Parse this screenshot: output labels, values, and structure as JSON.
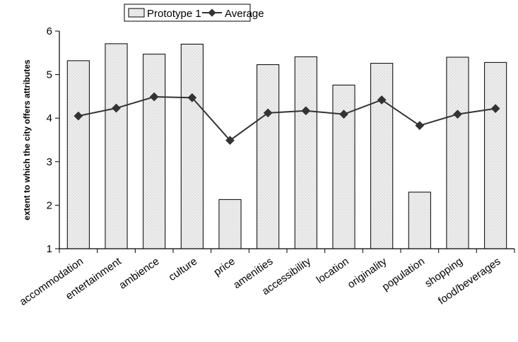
{
  "chart_data": {
    "type": "bar",
    "categories": [
      "accommodation",
      "entertainment",
      "ambience",
      "culture",
      "price",
      "amenities",
      "accessibility",
      "location",
      "originality",
      "population",
      "shopping",
      "food/beverages"
    ],
    "series": [
      {
        "name": "Prototype 1",
        "type": "bar",
        "values": [
          5.32,
          5.71,
          5.47,
          5.7,
          2.13,
          5.23,
          5.41,
          4.76,
          5.26,
          2.3,
          5.4,
          5.28
        ]
      },
      {
        "name": "Average",
        "type": "line",
        "values": [
          4.05,
          4.23,
          4.49,
          4.47,
          3.49,
          4.12,
          4.17,
          4.09,
          4.42,
          3.83,
          4.09,
          4.22
        ]
      }
    ],
    "ylabel": "extent to which the city offers attributes",
    "xlabel": "",
    "ylim": [
      1,
      6
    ],
    "yticks": [
      "1",
      "2",
      "3",
      "4",
      "5",
      "6"
    ],
    "grid": false,
    "legend": "top-left",
    "colors": {
      "bar_fill": "#ececec",
      "bar_stroke": "#000000",
      "line": "#333333",
      "marker": "#333333"
    }
  }
}
